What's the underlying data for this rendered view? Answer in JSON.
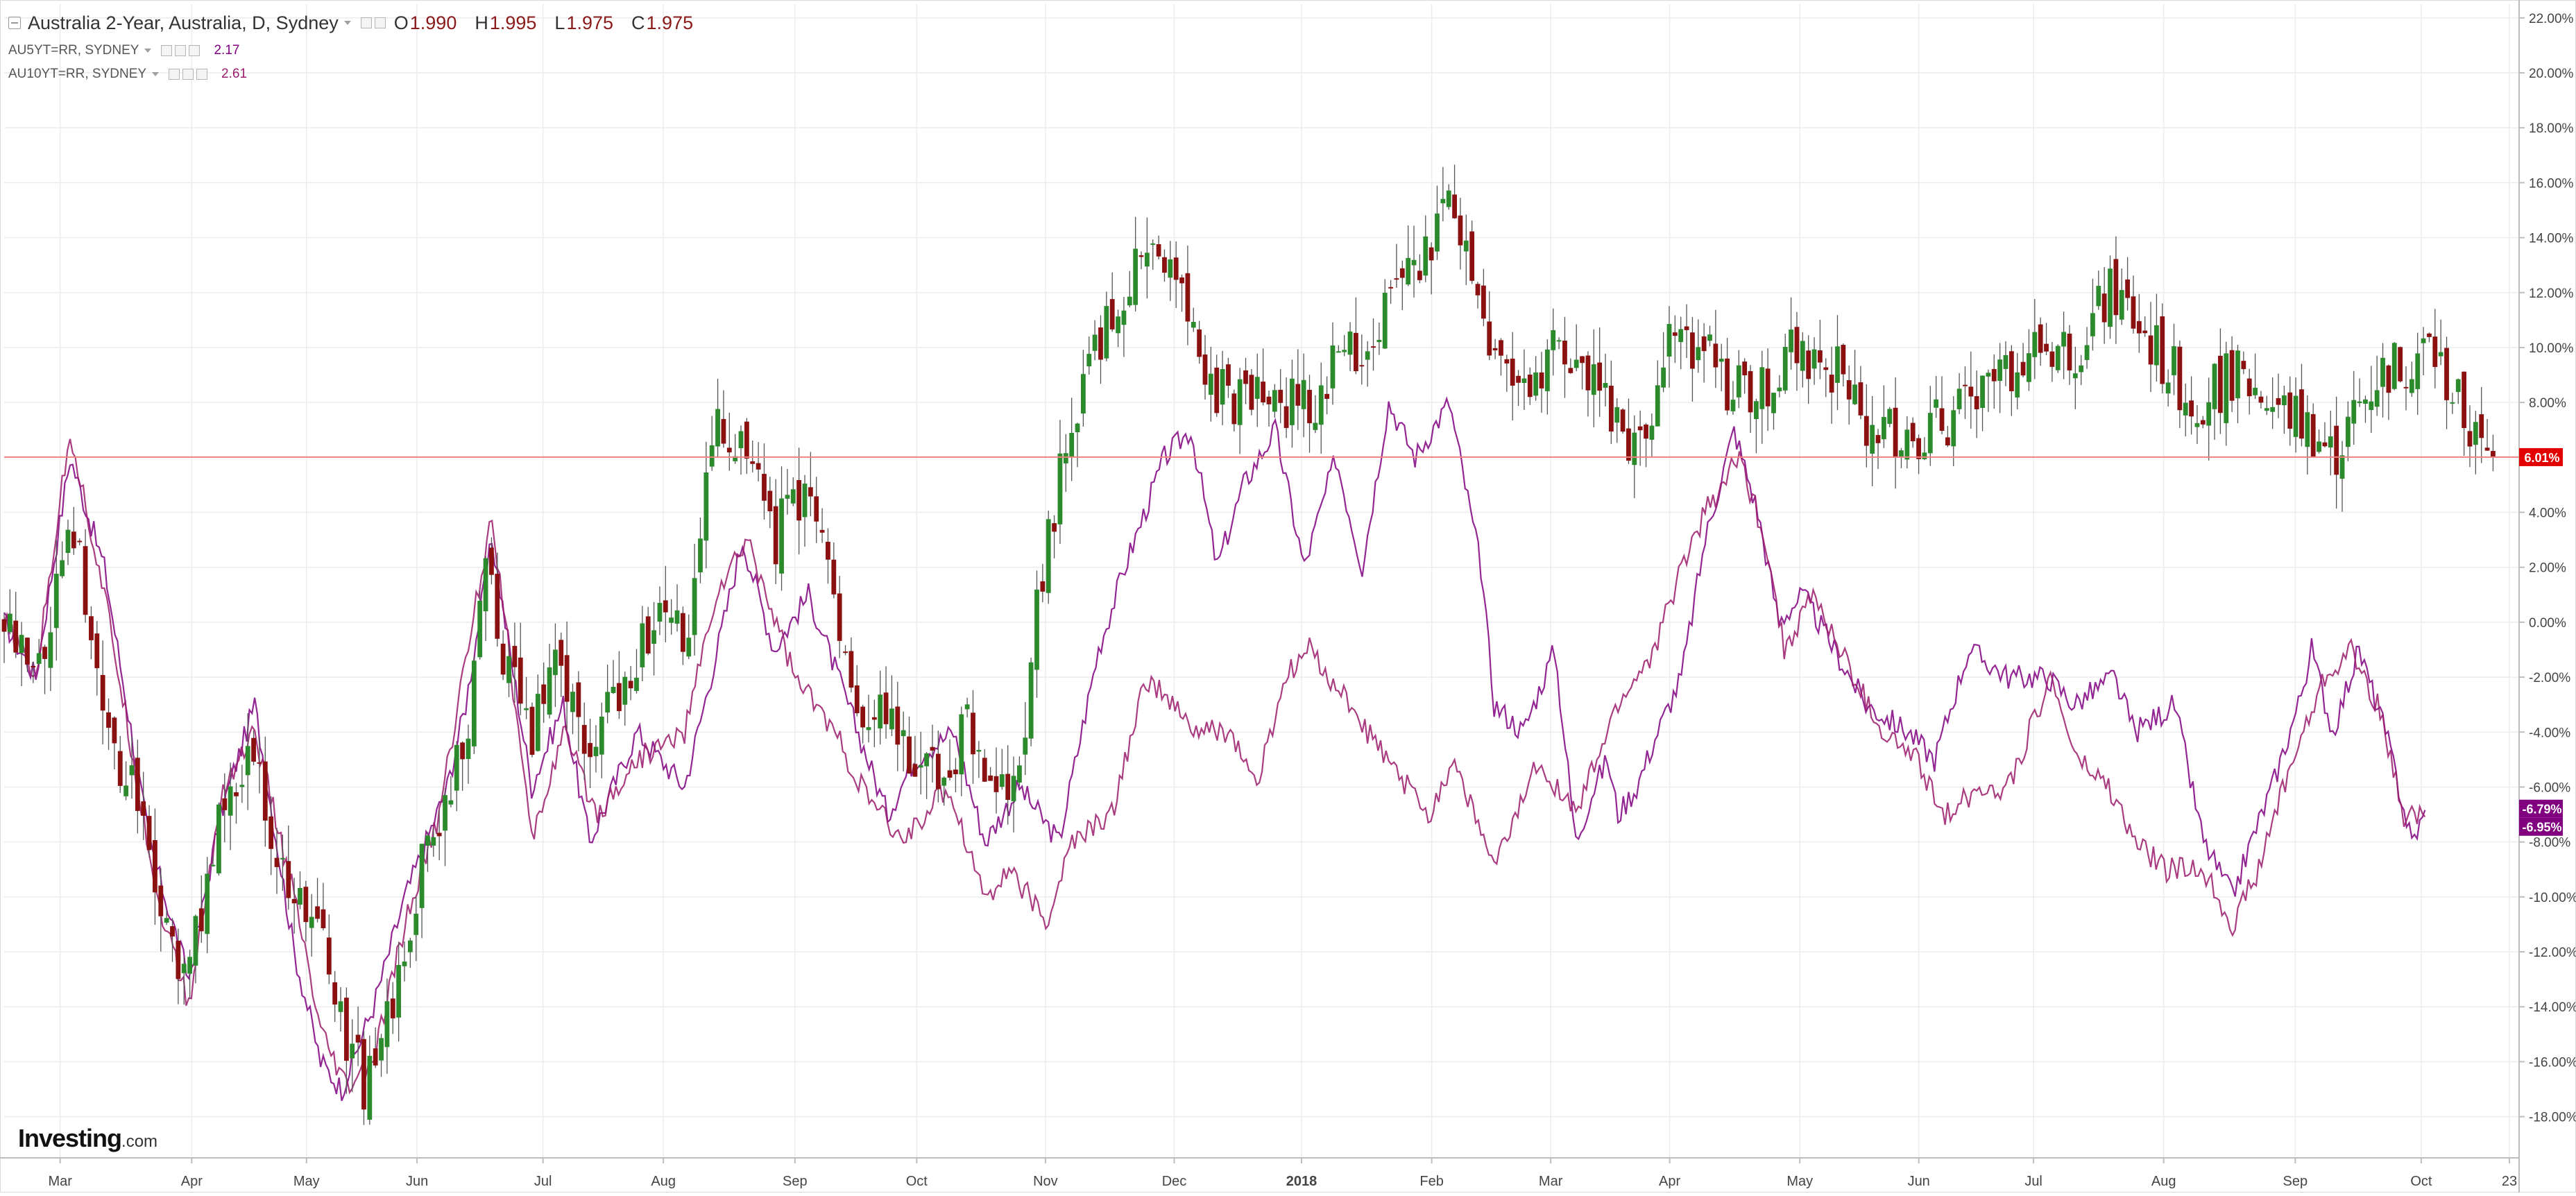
{
  "legend": {
    "main": {
      "name": "Australia 2-Year, Australia, D, Sydney",
      "o_label": "O",
      "o": "1.990",
      "h_label": "H",
      "h": "1.995",
      "l_label": "L",
      "l": "1.975",
      "c_label": "C",
      "c": "1.975"
    },
    "series": [
      {
        "name": "AU5YT=RR, SYDNEY",
        "value": "2.17",
        "color": "#800080"
      },
      {
        "name": "AU10YT=RR, SYDNEY",
        "value": "2.61",
        "color": "#9b1b6b"
      }
    ]
  },
  "logo": {
    "brand": "Investing",
    "suffix": ".com"
  },
  "price_labels": {
    "main": "6.01%",
    "s1": "-6.79%",
    "s2": "-6.95%"
  },
  "colors": {
    "up": "#2b8a2b",
    "down": "#8b1010",
    "line": "#a13aa8",
    "grid": "#ececec",
    "last_price_line": "#f08080",
    "last_price_badge": "#e30000",
    "compare_badge": "#800080",
    "axis": "#444444"
  },
  "chart_data": {
    "type": "candlestick",
    "title": "Australia 2-Year, Australia, D, Sydney",
    "xlabel": "",
    "ylabel": "",
    "x_tick_labels": [
      "Mar",
      "Apr",
      "May",
      "Jun",
      "Jul",
      "Aug",
      "Sep",
      "Oct",
      "Nov",
      "Dec",
      "2018",
      "Feb",
      "Mar",
      "Apr",
      "May",
      "Jun",
      "Jul",
      "Aug",
      "Sep",
      "Oct",
      "23"
    ],
    "y_ticks": [
      22,
      20,
      18,
      16,
      14,
      12,
      10,
      8,
      4,
      2,
      0,
      -2,
      -4,
      -6,
      -8,
      -10,
      -12,
      -14,
      -16,
      -18
    ],
    "y_tick_labels": [
      "22.00%",
      "20.00%",
      "18.00%",
      "16.00%",
      "14.00%",
      "12.00%",
      "10.00%",
      "8.00%",
      "4.00%",
      "2.00%",
      "0.00%",
      "-2.00%",
      "-4.00%",
      "-6.00%",
      "-8.00%",
      "-10.00%",
      "-12.00%",
      "-14.00%",
      "-16.00%",
      "-18.00%"
    ],
    "ylim": [
      -19.5,
      22.5
    ],
    "y_unit": "% change",
    "grid": true,
    "legend_position": "top-left",
    "last_value": 6.01,
    "main_series": {
      "name": "Australia 2-Year",
      "close_path": [
        [
          0,
          0
        ],
        [
          12,
          -2
        ],
        [
          25,
          4
        ],
        [
          40,
          -4
        ],
        [
          55,
          -8
        ],
        [
          68,
          -13
        ],
        [
          80,
          -8
        ],
        [
          93,
          -4
        ],
        [
          105,
          -9
        ],
        [
          118,
          -11
        ],
        [
          128,
          -15
        ],
        [
          138,
          -17
        ],
        [
          148,
          -14
        ],
        [
          158,
          -9
        ],
        [
          168,
          -6
        ],
        [
          175,
          -4
        ],
        [
          182,
          2
        ],
        [
          192,
          -2
        ],
        [
          200,
          -4
        ],
        [
          210,
          -1
        ],
        [
          222,
          -5
        ],
        [
          235,
          -2
        ],
        [
          248,
          0
        ],
        [
          260,
          -1
        ],
        [
          270,
          8
        ],
        [
          280,
          6
        ],
        [
          292,
          3
        ],
        [
          303,
          5
        ],
        [
          315,
          1
        ],
        [
          325,
          -3
        ],
        [
          335,
          -4
        ],
        [
          345,
          -5
        ],
        [
          355,
          -6
        ],
        [
          365,
          -4
        ],
        [
          375,
          -7
        ],
        [
          385,
          -5
        ],
        [
          395,
          3
        ],
        [
          405,
          7
        ],
        [
          415,
          10
        ],
        [
          425,
          12
        ],
        [
          435,
          14
        ],
        [
          445,
          12
        ],
        [
          455,
          9
        ],
        [
          465,
          8
        ],
        [
          480,
          8
        ],
        [
          495,
          8
        ],
        [
          510,
          10
        ],
        [
          525,
          11
        ],
        [
          540,
          14
        ],
        [
          550,
          15
        ],
        [
          557,
          12
        ],
        [
          565,
          10
        ],
        [
          575,
          8
        ],
        [
          590,
          10
        ],
        [
          605,
          8
        ],
        [
          620,
          6
        ],
        [
          635,
          11
        ],
        [
          650,
          9
        ],
        [
          665,
          8
        ],
        [
          680,
          10
        ],
        [
          695,
          9
        ],
        [
          710,
          7
        ],
        [
          730,
          7
        ],
        [
          750,
          8
        ],
        [
          765,
          10
        ],
        [
          785,
          10
        ],
        [
          800,
          12
        ],
        [
          815,
          10
        ],
        [
          830,
          8
        ],
        [
          845,
          9
        ],
        [
          860,
          8
        ],
        [
          875,
          7
        ],
        [
          883,
          6
        ],
        [
          900,
          9
        ],
        [
          920,
          10
        ],
        [
          940,
          6
        ],
        [
          946,
          6
        ]
      ],
      "amplitude_note": "daily OHLC candles; values approximate (% change from start)"
    },
    "series": [
      {
        "name": "AU5YT=RR, SYDNEY",
        "points": [
          [
            0,
            0
          ],
          [
            12,
            -2
          ],
          [
            25,
            6
          ],
          [
            38,
            2
          ],
          [
            55,
            -8
          ],
          [
            70,
            -13
          ],
          [
            82,
            -7
          ],
          [
            95,
            -3
          ],
          [
            110,
            -12
          ],
          [
            120,
            -16
          ],
          [
            128,
            -17
          ],
          [
            140,
            -14
          ],
          [
            152,
            -10
          ],
          [
            168,
            -6
          ],
          [
            175,
            -3
          ],
          [
            185,
            3
          ],
          [
            200,
            -6
          ],
          [
            212,
            -3
          ],
          [
            222,
            -8
          ],
          [
            240,
            -4
          ],
          [
            258,
            -6
          ],
          [
            268,
            -2
          ],
          [
            280,
            3
          ],
          [
            292,
            -1
          ],
          [
            305,
            1
          ],
          [
            320,
            -3
          ],
          [
            335,
            -7
          ],
          [
            345,
            -5
          ],
          [
            360,
            -4
          ],
          [
            372,
            -8
          ],
          [
            385,
            -6
          ],
          [
            400,
            -8
          ],
          [
            415,
            -1
          ],
          [
            425,
            2
          ],
          [
            440,
            6
          ],
          [
            450,
            7
          ],
          [
            460,
            2
          ],
          [
            470,
            5
          ],
          [
            482,
            7
          ],
          [
            493,
            2
          ],
          [
            505,
            6
          ],
          [
            515,
            2
          ],
          [
            525,
            8
          ],
          [
            535,
            6
          ],
          [
            548,
            8
          ],
          [
            560,
            2
          ],
          [
            565,
            -3
          ],
          [
            576,
            -4
          ],
          [
            588,
            -1
          ],
          [
            596,
            -8
          ],
          [
            603,
            -6
          ],
          [
            608,
            -5
          ],
          [
            612,
            -7
          ],
          [
            619,
            -6
          ],
          [
            627,
            -4
          ],
          [
            636,
            -2
          ],
          [
            645,
            3
          ],
          [
            656,
            7
          ],
          [
            665,
            4
          ],
          [
            673,
            0
          ],
          [
            682,
            1
          ],
          [
            694,
            -1
          ],
          [
            706,
            -3
          ],
          [
            722,
            -4
          ],
          [
            732,
            -5
          ],
          [
            745,
            -1
          ],
          [
            760,
            -2
          ],
          [
            775,
            -2
          ],
          [
            785,
            -3
          ],
          [
            800,
            -2
          ],
          [
            808,
            -4
          ],
          [
            823,
            -3
          ],
          [
            834,
            -8
          ],
          [
            845,
            -10
          ],
          [
            852,
            -8
          ],
          [
            860,
            -6
          ],
          [
            870,
            -3
          ],
          [
            875,
            -1
          ],
          [
            883,
            -4
          ],
          [
            893,
            -1
          ],
          [
            903,
            -4
          ],
          [
            913,
            -8
          ],
          [
            918,
            -7
          ]
        ]
      },
      {
        "name": "AU10YT=RR, SYDNEY",
        "points": [
          [
            0,
            0
          ],
          [
            12,
            -2
          ],
          [
            25,
            7
          ],
          [
            40,
            0
          ],
          [
            58,
            -10
          ],
          [
            70,
            -14
          ],
          [
            83,
            -6
          ],
          [
            95,
            -4
          ],
          [
            110,
            -10
          ],
          [
            120,
            -15
          ],
          [
            130,
            -17
          ],
          [
            140,
            -16
          ],
          [
            152,
            -11
          ],
          [
            165,
            -7
          ],
          [
            172,
            -3
          ],
          [
            185,
            4
          ],
          [
            200,
            -8
          ],
          [
            212,
            -4
          ],
          [
            225,
            -7
          ],
          [
            240,
            -5
          ],
          [
            258,
            -4
          ],
          [
            270,
            1
          ],
          [
            282,
            3
          ],
          [
            300,
            -2
          ],
          [
            315,
            -4
          ],
          [
            325,
            -6
          ],
          [
            340,
            -8
          ],
          [
            358,
            -6
          ],
          [
            372,
            -10
          ],
          [
            382,
            -9
          ],
          [
            395,
            -11
          ],
          [
            405,
            -8
          ],
          [
            420,
            -7
          ],
          [
            433,
            -2
          ],
          [
            452,
            -4
          ],
          [
            465,
            -4
          ],
          [
            475,
            -6
          ],
          [
            486,
            -2
          ],
          [
            495,
            -1
          ],
          [
            510,
            -3
          ],
          [
            524,
            -5
          ],
          [
            540,
            -7
          ],
          [
            550,
            -5
          ],
          [
            565,
            -9
          ],
          [
            582,
            -5
          ],
          [
            596,
            -7
          ],
          [
            604,
            -5
          ],
          [
            612,
            -3
          ],
          [
            626,
            -1
          ],
          [
            636,
            2
          ],
          [
            645,
            4
          ],
          [
            658,
            6
          ],
          [
            668,
            3
          ],
          [
            675,
            -1
          ],
          [
            686,
            1
          ],
          [
            696,
            -1
          ],
          [
            712,
            -4
          ],
          [
            725,
            -5
          ],
          [
            735,
            -7
          ],
          [
            750,
            -6
          ],
          [
            760,
            -6
          ],
          [
            776,
            -2
          ],
          [
            786,
            -5
          ],
          [
            798,
            -6
          ],
          [
            808,
            -8
          ],
          [
            820,
            -9
          ],
          [
            834,
            -9
          ],
          [
            845,
            -11
          ],
          [
            855,
            -9
          ],
          [
            864,
            -6
          ],
          [
            872,
            -4
          ],
          [
            880,
            -2
          ],
          [
            890,
            -1
          ],
          [
            900,
            -3
          ],
          [
            910,
            -7
          ],
          [
            918,
            -7
          ]
        ]
      }
    ]
  }
}
